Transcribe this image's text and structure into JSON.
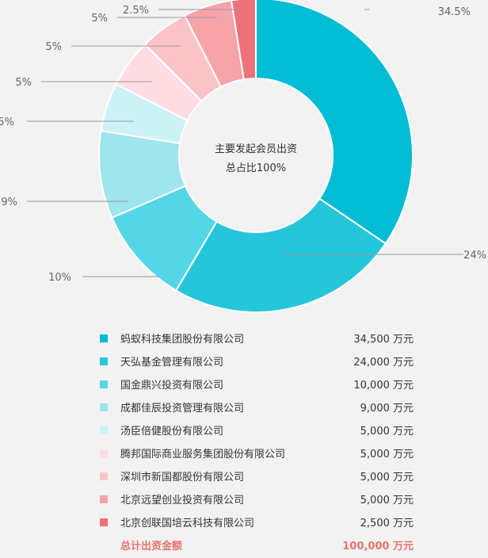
{
  "center_text": [
    "主要发起会员出资",
    "总占比100%"
  ],
  "chart_data": {
    "type": "pie",
    "variant": "donut",
    "slices": [
      {
        "label": "蚂蚁科技集团股份有限公司",
        "value": 34500,
        "percent_label": "34.5%",
        "amount_label": "34,500 万元",
        "color": "#00bcd4"
      },
      {
        "label": "天弘基金管理有限公司",
        "value": 24000,
        "percent_label": "24%",
        "amount_label": "24,000 万元",
        "color": "#26c6da"
      },
      {
        "label": "国金鼎兴投资有限公司",
        "value": 10000,
        "percent_label": "10%",
        "amount_label": "10,000 万元",
        "color": "#55d6e6"
      },
      {
        "label": "成都佳辰投资管理有限公司",
        "value": 9000,
        "percent_label": "9%",
        "amount_label": "9,000 万元",
        "color": "#9ee5ee"
      },
      {
        "label": "汤臣倍健股份有限公司",
        "value": 5000,
        "percent_label": "5%",
        "amount_label": "5,000 万元",
        "color": "#cdf3f7"
      },
      {
        "label": "腾邦国际商业服务集团股份有限公司",
        "value": 5000,
        "percent_label": "5%",
        "amount_label": "5,000 万元",
        "color": "#ffdde2"
      },
      {
        "label": "深圳市新国都股份有限公司",
        "value": 5000,
        "percent_label": "5%",
        "amount_label": "5,000 万元",
        "color": "#fbc3c8"
      },
      {
        "label": "北京远望创业投资有限公司",
        "value": 5000,
        "percent_label": "5%",
        "amount_label": "5,000 万元",
        "color": "#f6a3aa"
      },
      {
        "label": "北京创联国培云科技有限公司",
        "value": 2500,
        "percent_label": "2.5%",
        "amount_label": "2,500 万元",
        "color": "#ee7179"
      }
    ],
    "total": {
      "label": "总计出资金额",
      "amount_label": "100,000 万元"
    }
  }
}
